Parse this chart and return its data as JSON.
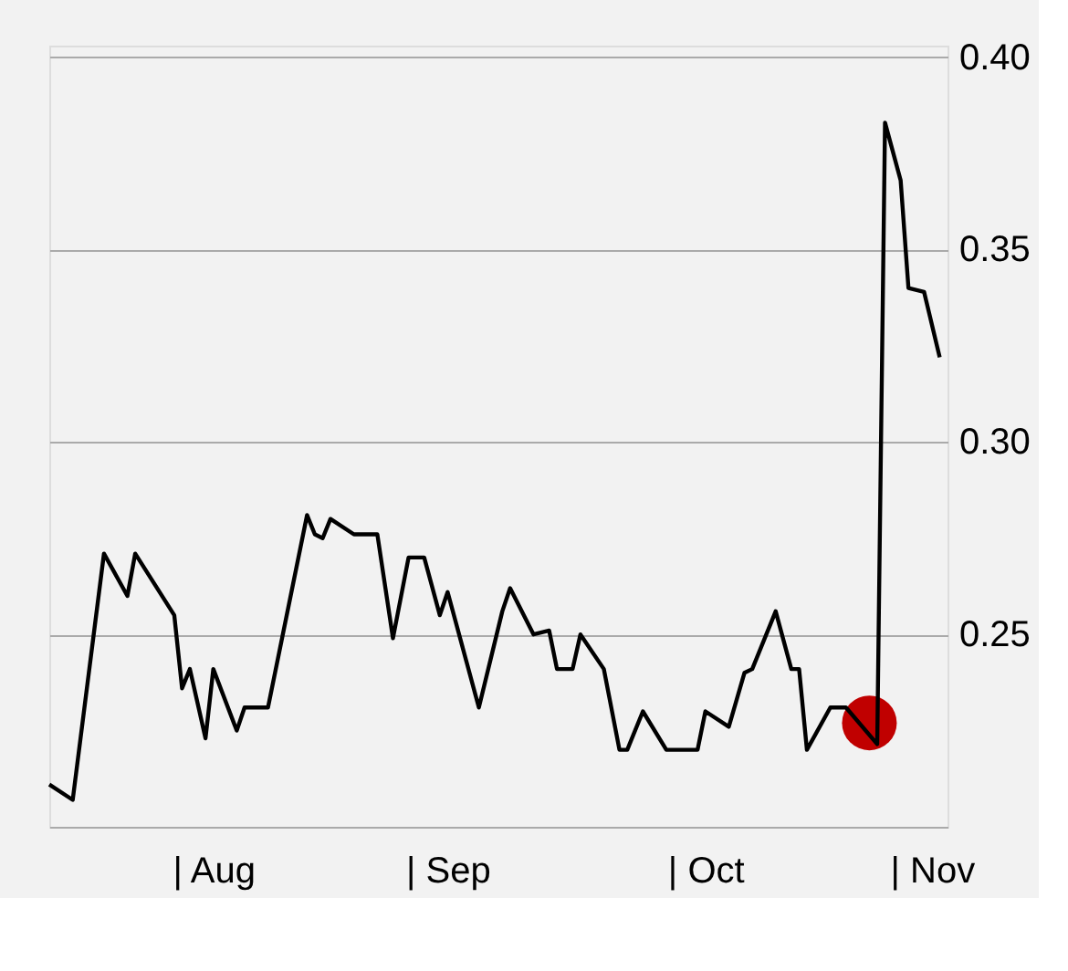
{
  "chart_data": {
    "type": "line",
    "xlim": [
      "--07-17",
      "--11-09"
    ],
    "ylim": [
      0.2,
      0.403
    ],
    "xticks": [
      {
        "value": "--08-07",
        "label": "| Aug"
      },
      {
        "value": "--09-06",
        "label": "| Sep"
      },
      {
        "value": "--10-09",
        "label": "| Oct"
      },
      {
        "value": "--11-07",
        "label": "| Nov"
      }
    ],
    "yticks": [
      {
        "value": 0.25,
        "label": "0.25"
      },
      {
        "value": 0.3,
        "label": "0.30"
      },
      {
        "value": 0.35,
        "label": "0.35"
      },
      {
        "value": 0.4,
        "label": "0.40"
      }
    ],
    "grid": "y",
    "series": [
      {
        "type": "line",
        "color": "#000000",
        "marker": "none",
        "x": [
          "--07-17",
          "--07-20",
          "--07-24",
          "--07-27",
          "--07-28",
          "--08-02",
          "--08-03",
          "--08-04",
          "--08-06",
          "--08-07",
          "--08-10",
          "--08-11",
          "--08-14",
          "--08-19",
          "--08-20",
          "--08-21",
          "--08-22",
          "--08-25",
          "--08-28",
          "--08-30",
          "--09-01",
          "--09-03",
          "--09-05",
          "--09-06",
          "--09-10",
          "--09-13",
          "--09-14",
          "--09-17",
          "--09-19",
          "--09-20",
          "--09-22",
          "--09-23",
          "--09-26",
          "--09-28",
          "--09-29",
          "--10-01",
          "--10-04",
          "--10-08",
          "--10-09",
          "--10-12",
          "--10-14",
          "--10-15",
          "--10-18",
          "--10-20",
          "--10-21",
          "--10-22",
          "--10-25",
          "--10-27",
          "--10-31",
          "--11-01",
          "--11-03",
          "--11-04",
          "--11-06",
          "--11-08"
        ],
        "values": [
          0.211,
          0.207,
          0.271,
          0.26,
          0.271,
          0.255,
          0.236,
          0.241,
          0.223,
          0.241,
          0.225,
          0.231,
          0.231,
          0.281,
          0.276,
          0.275,
          0.28,
          0.276,
          0.276,
          0.249,
          0.27,
          0.27,
          0.255,
          0.261,
          0.231,
          0.256,
          0.262,
          0.25,
          0.251,
          0.241,
          0.241,
          0.25,
          0.241,
          0.22,
          0.22,
          0.23,
          0.22,
          0.22,
          0.23,
          0.226,
          0.24,
          0.241,
          0.256,
          0.241,
          0.241,
          0.22,
          0.231,
          0.231,
          0.2215,
          0.383,
          0.368,
          0.34,
          0.339,
          0.322
        ]
      },
      {
        "type": "scatter",
        "color": "#c00000",
        "marker": "circle",
        "x": [
          "--10-30"
        ],
        "values": [
          0.227
        ]
      }
    ]
  }
}
